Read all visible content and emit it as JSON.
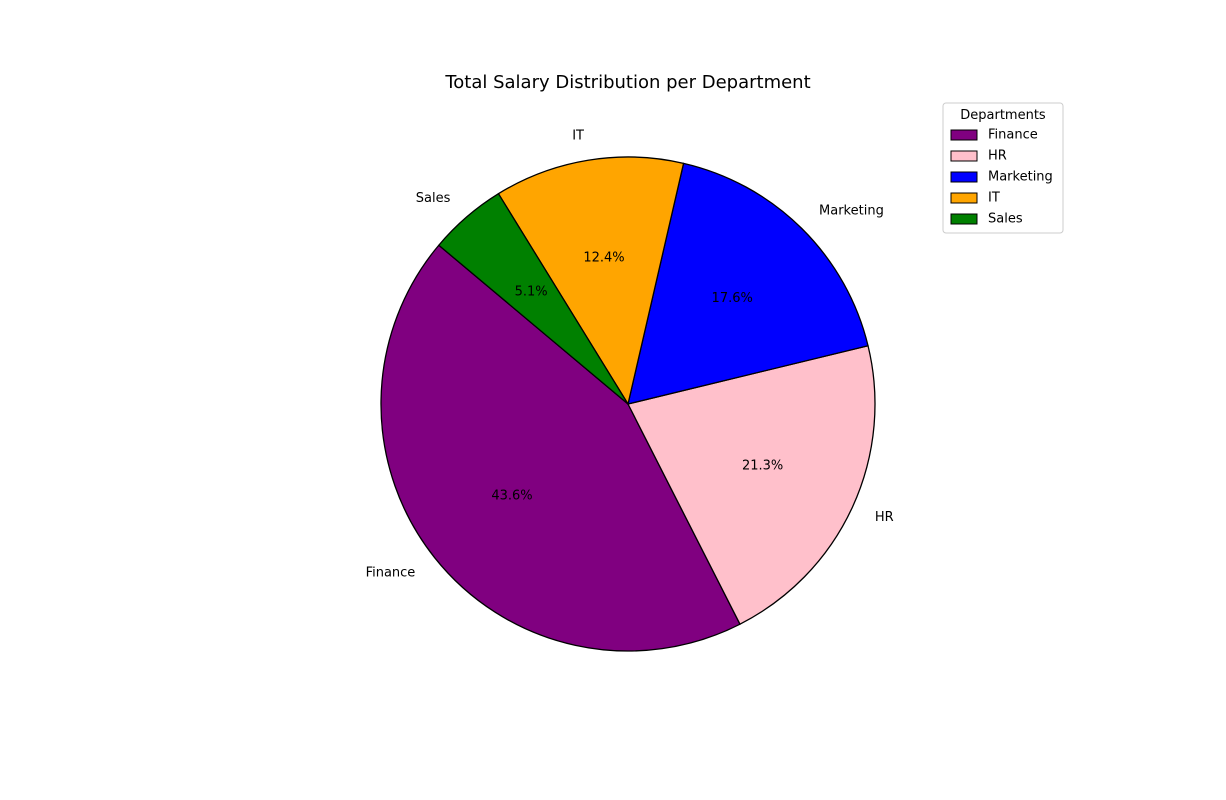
{
  "chart_data": {
    "type": "pie",
    "title": "Total Salary Distribution per Department",
    "legend": {
      "title": "Departments",
      "placement": "top-right"
    },
    "slices": [
      {
        "label": "Finance",
        "percent": 43.6,
        "pct_text": "43.6%",
        "color": "#800080"
      },
      {
        "label": "HR",
        "percent": 21.3,
        "pct_text": "21.3%",
        "color": "#ffc0cb"
      },
      {
        "label": "Marketing",
        "percent": 17.6,
        "pct_text": "17.6%",
        "color": "#0000ff"
      },
      {
        "label": "IT",
        "percent": 12.4,
        "pct_text": "12.4%",
        "color": "#ffa500"
      },
      {
        "label": "Sales",
        "percent": 5.1,
        "pct_text": "5.1%",
        "color": "#008000"
      }
    ],
    "start_angle_deg": 140,
    "direction": "counterclockwise",
    "edge_color": "#000000"
  }
}
